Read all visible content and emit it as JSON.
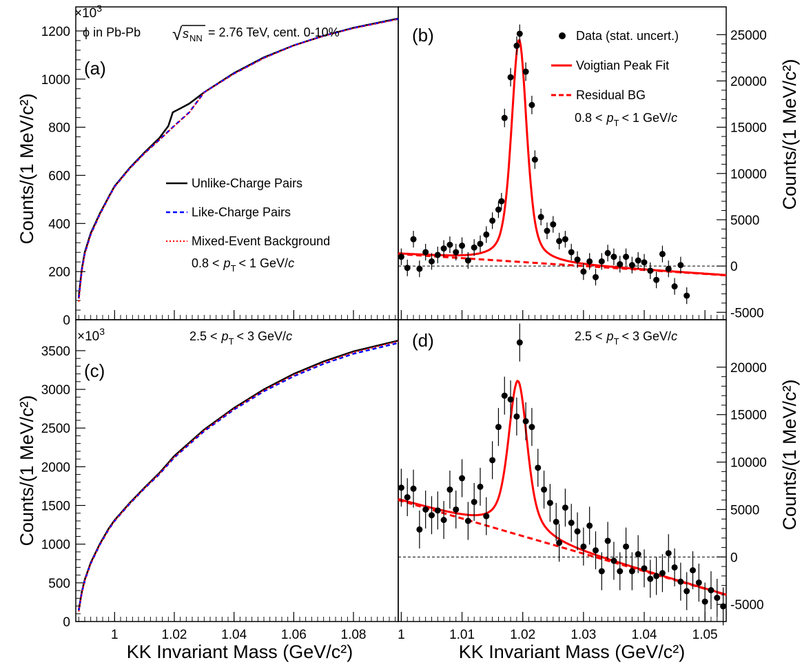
{
  "figure": {
    "header": "ϕ in Pb-Pb",
    "energy": "= 2.76 TeV, cent. 0-10%",
    "sqrt_s_main": "s",
    "sqrt_s_sub": "NN",
    "exp_base": "×10",
    "exp_power": "3",
    "y_title_left": "Counts/(1 MeV/c²)",
    "y_title_right": "Counts/(1 MeV/c²)",
    "x_title": "KK Invariant Mass (GeV/c²)"
  },
  "legend_left": {
    "unlike": "Unlike-Charge Pairs",
    "like": "Like-Charge Pairs",
    "mixed": "Mixed-Event Background"
  },
  "legend_right": {
    "data": "Data (stat. uncert.)",
    "fit": "Voigtian Peak Fit",
    "bg": "Residual BG"
  },
  "pt_labels": {
    "low_lo": "0.8 <",
    "low_hi": "< 1 GeV/",
    "high_lo": "2.5 <",
    "high_hi": "< 3 GeV/",
    "p": "p",
    "T": "T",
    "c": "c"
  },
  "colors": {
    "unlike": "#000000",
    "like": "#0000ff",
    "mixed": "#ff0000",
    "fit": "#ff0000",
    "data": "#000000"
  },
  "chart_data": [
    {
      "panel": "(a)",
      "type": "line",
      "xlim": [
        0.987,
        1.095
      ],
      "ylim": [
        0,
        1300
      ],
      "y_ticks": [
        0,
        200,
        400,
        600,
        800,
        1000,
        1200
      ],
      "x_ticks": [
        1,
        1.02,
        1.04,
        1.06,
        1.08
      ],
      "xtick_labels": [
        "",
        "",
        "",
        "",
        ""
      ],
      "y_scale_label": "×10³",
      "series": [
        {
          "name": "Unlike-Charge Pairs",
          "x": [
            0.988,
            0.989,
            0.99,
            0.992,
            0.995,
            0.998,
            1.0,
            1.005,
            1.01,
            1.015,
            1.018,
            1.0195,
            1.022,
            1.025,
            1.03,
            1.04,
            1.05,
            1.06,
            1.07,
            1.08,
            1.095
          ],
          "y": [
            95,
            210,
            280,
            360,
            440,
            510,
            555,
            630,
            695,
            755,
            805,
            862,
            878,
            898,
            945,
            1025,
            1090,
            1140,
            1180,
            1213,
            1252
          ]
        },
        {
          "name": "Like-Charge Pairs",
          "x": [
            0.988,
            0.989,
            0.99,
            0.992,
            0.995,
            0.998,
            1.0,
            1.005,
            1.01,
            1.015,
            1.02,
            1.025,
            1.03,
            1.04,
            1.05,
            1.06,
            1.07,
            1.08,
            1.095
          ],
          "y": [
            88,
            205,
            275,
            355,
            437,
            508,
            553,
            628,
            692,
            748,
            806,
            862,
            945,
            1023,
            1088,
            1140,
            1180,
            1212,
            1250
          ]
        },
        {
          "name": "Mixed-Event Background",
          "x": [
            0.988,
            0.989,
            0.99,
            0.992,
            0.995,
            0.998,
            1.0,
            1.005,
            1.01,
            1.015,
            1.02,
            1.025,
            1.03,
            1.04,
            1.05,
            1.06,
            1.07,
            1.08,
            1.095
          ],
          "y": [
            75,
            200,
            272,
            353,
            436,
            507,
            552,
            627,
            691,
            747,
            805,
            861,
            944,
            1022,
            1087,
            1139,
            1179,
            1211,
            1249
          ]
        }
      ]
    },
    {
      "panel": "(b)",
      "type": "scatter",
      "xlim": [
        0.9995,
        1.0535
      ],
      "ylim": [
        -5800,
        28000
      ],
      "y_ticks": [
        -5000,
        0,
        5000,
        10000,
        15000,
        20000,
        25000
      ],
      "x_ticks": [
        1,
        1.01,
        1.02,
        1.03,
        1.04,
        1.05
      ],
      "xtick_labels": [
        "",
        "",
        "",
        "",
        "",
        ""
      ],
      "points": [
        [
          1.0,
          1000,
          900
        ],
        [
          1.001,
          -200,
          900
        ],
        [
          1.002,
          2900,
          900
        ],
        [
          1.003,
          -300,
          900
        ],
        [
          1.004,
          1500,
          900
        ],
        [
          1.005,
          500,
          900
        ],
        [
          1.006,
          1200,
          900
        ],
        [
          1.007,
          1900,
          900
        ],
        [
          1.008,
          2300,
          900
        ],
        [
          1.009,
          1500,
          900
        ],
        [
          1.01,
          2200,
          900
        ],
        [
          1.011,
          600,
          900
        ],
        [
          1.012,
          2000,
          900
        ],
        [
          1.013,
          2400,
          900
        ],
        [
          1.014,
          3400,
          900
        ],
        [
          1.015,
          4900,
          900
        ],
        [
          1.016,
          6100,
          900
        ],
        [
          1.0165,
          7000,
          900
        ],
        [
          1.017,
          16000,
          1000
        ],
        [
          1.018,
          20400,
          1000
        ],
        [
          1.019,
          23800,
          1000
        ],
        [
          1.0195,
          25100,
          1000
        ],
        [
          1.0205,
          21000,
          1000
        ],
        [
          1.0215,
          17400,
          1000
        ],
        [
          1.022,
          11500,
          1000
        ],
        [
          1.023,
          5300,
          900
        ],
        [
          1.024,
          3800,
          900
        ],
        [
          1.025,
          4500,
          900
        ],
        [
          1.026,
          2700,
          900
        ],
        [
          1.027,
          2900,
          900
        ],
        [
          1.028,
          1500,
          900
        ],
        [
          1.029,
          700,
          900
        ],
        [
          1.03,
          -600,
          900
        ],
        [
          1.031,
          500,
          900
        ],
        [
          1.032,
          -1200,
          900
        ],
        [
          1.033,
          500,
          900
        ],
        [
          1.034,
          1400,
          900
        ],
        [
          1.035,
          1000,
          900
        ],
        [
          1.036,
          200,
          900
        ],
        [
          1.037,
          1000,
          900
        ],
        [
          1.038,
          100,
          900
        ],
        [
          1.039,
          600,
          900
        ],
        [
          1.04,
          400,
          900
        ],
        [
          1.041,
          -500,
          900
        ],
        [
          1.042,
          -1500,
          900
        ],
        [
          1.043,
          1300,
          900
        ],
        [
          1.044,
          -300,
          900
        ],
        [
          1.045,
          -2200,
          900
        ],
        [
          1.046,
          100,
          900
        ],
        [
          1.047,
          -3200,
          900
        ]
      ],
      "fit": {
        "type": "voigt",
        "mass": 1.0194,
        "sigma": 0.00125,
        "gamma": 0.0031,
        "amplitude": 24000
      },
      "bg_line": {
        "x": [
          0.9995,
          1.0535
        ],
        "y": [
          1300,
          -1000
        ]
      }
    },
    {
      "panel": "(c)",
      "type": "line",
      "xlim": [
        0.987,
        1.095
      ],
      "ylim": [
        0,
        3900
      ],
      "y_ticks": [
        0,
        500,
        1000,
        1500,
        2000,
        2500,
        3000,
        3500
      ],
      "x_ticks": [
        1,
        1.02,
        1.04,
        1.06,
        1.08
      ],
      "xtick_labels": [
        "1",
        "1.02",
        "1.04",
        "1.06",
        "1.08"
      ],
      "y_scale_label": "×10³",
      "series": [
        {
          "name": "Unlike-Charge Pairs",
          "x": [
            0.988,
            0.989,
            0.99,
            0.992,
            0.995,
            0.998,
            1.0,
            1.005,
            1.01,
            1.015,
            1.02,
            1.03,
            1.04,
            1.05,
            1.06,
            1.07,
            1.08,
            1.095
          ],
          "y": [
            150,
            380,
            540,
            760,
            1000,
            1200,
            1310,
            1530,
            1730,
            1920,
            2140,
            2480,
            2760,
            3000,
            3200,
            3360,
            3490,
            3630
          ]
        },
        {
          "name": "Like-Charge Pairs",
          "x": [
            0.988,
            0.989,
            0.99,
            0.992,
            0.995,
            0.998,
            1.0,
            1.005,
            1.01,
            1.015,
            1.02,
            1.03,
            1.04,
            1.05,
            1.06,
            1.07,
            1.08,
            1.095
          ],
          "y": [
            140,
            370,
            530,
            750,
            990,
            1190,
            1300,
            1520,
            1720,
            1905,
            2120,
            2460,
            2740,
            2975,
            3170,
            3330,
            3460,
            3600
          ]
        },
        {
          "name": "Mixed-Event Background",
          "x": [
            0.988,
            0.989,
            0.99,
            0.992,
            0.995,
            0.998,
            1.0,
            1.005,
            1.01,
            1.015,
            1.02,
            1.03,
            1.04,
            1.05,
            1.06,
            1.07,
            1.08,
            1.095
          ],
          "y": [
            130,
            365,
            528,
            748,
            990,
            1190,
            1302,
            1522,
            1722,
            1910,
            2125,
            2468,
            2750,
            2988,
            3185,
            3345,
            3478,
            3620
          ]
        }
      ]
    },
    {
      "panel": "(d)",
      "type": "scatter",
      "xlim": [
        0.9995,
        1.0535
      ],
      "ylim": [
        -6800,
        25000
      ],
      "y_ticks": [
        -5000,
        0,
        5000,
        10000,
        15000,
        20000
      ],
      "x_ticks": [
        1,
        1.01,
        1.02,
        1.03,
        1.04,
        1.05
      ],
      "xtick_labels": [
        "1",
        "1.01",
        "1.02",
        "1.03",
        "1.04",
        "1.05"
      ],
      "points": [
        [
          1.0,
          7300,
          2000
        ],
        [
          1.001,
          6300,
          2000
        ],
        [
          1.002,
          7200,
          2000
        ],
        [
          1.003,
          2900,
          2000
        ],
        [
          1.004,
          5000,
          2000
        ],
        [
          1.005,
          4400,
          2000
        ],
        [
          1.006,
          4900,
          2000
        ],
        [
          1.007,
          3900,
          2000
        ],
        [
          1.008,
          7100,
          2000
        ],
        [
          1.009,
          5000,
          2000
        ],
        [
          1.01,
          8300,
          2000
        ],
        [
          1.011,
          3800,
          2000
        ],
        [
          1.012,
          5800,
          2000
        ],
        [
          1.013,
          7400,
          2000
        ],
        [
          1.014,
          4300,
          2000
        ],
        [
          1.015,
          10200,
          2000
        ],
        [
          1.016,
          13700,
          2000
        ],
        [
          1.017,
          17000,
          2000
        ],
        [
          1.018,
          16600,
          2000
        ],
        [
          1.019,
          14800,
          2000
        ],
        [
          1.0195,
          22600,
          2000
        ],
        [
          1.0205,
          14300,
          2000
        ],
        [
          1.0215,
          13700,
          2000
        ],
        [
          1.0225,
          9400,
          2000
        ],
        [
          1.0235,
          7100,
          2000
        ],
        [
          1.0245,
          5700,
          2000
        ],
        [
          1.0255,
          3700,
          2000
        ],
        [
          1.026,
          1500,
          2000
        ],
        [
          1.027,
          5200,
          2000
        ],
        [
          1.028,
          3600,
          2000
        ],
        [
          1.029,
          2700,
          2000
        ],
        [
          1.03,
          1100,
          2000
        ],
        [
          1.031,
          3300,
          2000
        ],
        [
          1.032,
          700,
          2000
        ],
        [
          1.033,
          -1500,
          2000
        ],
        [
          1.034,
          1700,
          2000
        ],
        [
          1.035,
          -400,
          2000
        ],
        [
          1.036,
          -1500,
          2000
        ],
        [
          1.037,
          1100,
          2000
        ],
        [
          1.038,
          -1500,
          2000
        ],
        [
          1.039,
          300,
          2000
        ],
        [
          1.04,
          -1200,
          2000
        ],
        [
          1.041,
          -2300,
          2000
        ],
        [
          1.042,
          -2000,
          2000
        ],
        [
          1.043,
          -1700,
          2000
        ],
        [
          1.044,
          400,
          2000
        ],
        [
          1.045,
          -1100,
          2000
        ],
        [
          1.046,
          -2600,
          2000
        ],
        [
          1.047,
          -3600,
          2000
        ],
        [
          1.048,
          -1400,
          2000
        ],
        [
          1.049,
          -2700,
          2000
        ],
        [
          1.05,
          -4700,
          2000
        ],
        [
          1.051,
          -3500,
          2000
        ],
        [
          1.052,
          -4300,
          2000
        ],
        [
          1.053,
          -5200,
          2000
        ]
      ],
      "fit": {
        "type": "voigt",
        "mass": 1.0192,
        "sigma": 0.0014,
        "gamma": 0.0045,
        "amplitude": 16200
      },
      "bg_line": {
        "x": [
          0.9995,
          1.0535
        ],
        "y": [
          6000,
          -4000
        ]
      }
    }
  ]
}
